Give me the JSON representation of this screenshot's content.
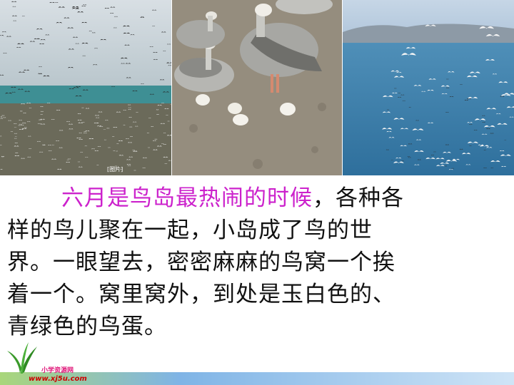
{
  "photos": {
    "left": {
      "watermark": "[图片]"
    },
    "middle": {},
    "right": {}
  },
  "passage": {
    "highlight": "六月是鸟岛最热闹的时候",
    "line1_rest": "，各种各",
    "line2": "样的鸟儿聚在一起，小岛成了鸟的世",
    "line3": "界。一眼望去，密密麻麻的鸟窝一个挨",
    "line4": "着一个。窝里窝外，到处是玉白色的、",
    "line5": "青绿色的鸟蛋。"
  },
  "footer": {
    "site_name": "小学资源网",
    "site_url": "www.xj5u.com"
  },
  "colors": {
    "highlight": "#cc22cc",
    "text": "#111111"
  }
}
